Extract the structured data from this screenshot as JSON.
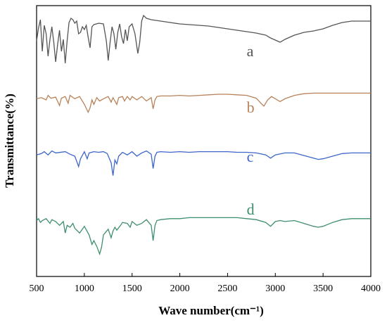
{
  "chart_data": {
    "type": "line",
    "title": "",
    "xlabel": "Wave number(cm⁻¹)",
    "ylabel": "Transmittance(%)",
    "xlim": [
      500,
      4000
    ],
    "x_ticks": [
      "500",
      "1000",
      "1500",
      "2000",
      "2500",
      "3000",
      "3500",
      "4000"
    ],
    "y_ticks_visible": false,
    "grid": false,
    "legend": "inline labels beside each curve",
    "series": [
      {
        "name": "a",
        "color": "#555555",
        "points": [
          [
            500,
            60
          ],
          [
            520,
            78
          ],
          [
            540,
            90
          ],
          [
            560,
            45
          ],
          [
            580,
            82
          ],
          [
            600,
            70
          ],
          [
            620,
            38
          ],
          [
            640,
            62
          ],
          [
            660,
            80
          ],
          [
            680,
            58
          ],
          [
            700,
            30
          ],
          [
            720,
            55
          ],
          [
            740,
            75
          ],
          [
            760,
            45
          ],
          [
            780,
            62
          ],
          [
            800,
            28
          ],
          [
            820,
            60
          ],
          [
            840,
            86
          ],
          [
            860,
            92
          ],
          [
            880,
            90
          ],
          [
            900,
            85
          ],
          [
            920,
            88
          ],
          [
            940,
            70
          ],
          [
            960,
            72
          ],
          [
            980,
            80
          ],
          [
            1000,
            76
          ],
          [
            1020,
            82
          ],
          [
            1040,
            65
          ],
          [
            1060,
            50
          ],
          [
            1080,
            80
          ],
          [
            1100,
            83
          ],
          [
            1150,
            85
          ],
          [
            1200,
            84
          ],
          [
            1230,
            60
          ],
          [
            1250,
            32
          ],
          [
            1270,
            58
          ],
          [
            1290,
            80
          ],
          [
            1310,
            70
          ],
          [
            1330,
            48
          ],
          [
            1350,
            72
          ],
          [
            1370,
            84
          ],
          [
            1390,
            66
          ],
          [
            1410,
            56
          ],
          [
            1430,
            76
          ],
          [
            1450,
            60
          ],
          [
            1470,
            80
          ],
          [
            1500,
            84
          ],
          [
            1530,
            70
          ],
          [
            1560,
            42
          ],
          [
            1580,
            58
          ],
          [
            1600,
            88
          ],
          [
            1620,
            96
          ],
          [
            1650,
            92
          ],
          [
            1700,
            90
          ],
          [
            1800,
            88
          ],
          [
            1900,
            86
          ],
          [
            2000,
            84
          ],
          [
            2100,
            83
          ],
          [
            2200,
            82
          ],
          [
            2300,
            81
          ],
          [
            2400,
            79
          ],
          [
            2500,
            77
          ],
          [
            2600,
            75
          ],
          [
            2700,
            73
          ],
          [
            2800,
            71
          ],
          [
            2900,
            68
          ],
          [
            2950,
            64
          ],
          [
            3000,
            61
          ],
          [
            3050,
            58
          ],
          [
            3100,
            62
          ],
          [
            3200,
            68
          ],
          [
            3300,
            72
          ],
          [
            3400,
            74
          ],
          [
            3500,
            77
          ],
          [
            3600,
            82
          ],
          [
            3700,
            86
          ],
          [
            3800,
            88
          ],
          [
            3900,
            88
          ],
          [
            4000,
            88
          ]
        ]
      },
      {
        "name": "b",
        "color": "#b8825a",
        "points": [
          [
            500,
            62
          ],
          [
            550,
            64
          ],
          [
            600,
            60
          ],
          [
            620,
            68
          ],
          [
            650,
            63
          ],
          [
            700,
            65
          ],
          [
            740,
            50
          ],
          [
            760,
            63
          ],
          [
            800,
            66
          ],
          [
            830,
            54
          ],
          [
            850,
            68
          ],
          [
            900,
            62
          ],
          [
            950,
            66
          ],
          [
            1000,
            52
          ],
          [
            1040,
            38
          ],
          [
            1060,
            46
          ],
          [
            1080,
            60
          ],
          [
            1100,
            52
          ],
          [
            1130,
            64
          ],
          [
            1160,
            58
          ],
          [
            1200,
            62
          ],
          [
            1250,
            66
          ],
          [
            1280,
            56
          ],
          [
            1300,
            64
          ],
          [
            1340,
            52
          ],
          [
            1360,
            64
          ],
          [
            1400,
            66
          ],
          [
            1420,
            58
          ],
          [
            1450,
            66
          ],
          [
            1480,
            60
          ],
          [
            1500,
            66
          ],
          [
            1550,
            60
          ],
          [
            1600,
            66
          ],
          [
            1650,
            58
          ],
          [
            1700,
            64
          ],
          [
            1720,
            44
          ],
          [
            1740,
            60
          ],
          [
            1760,
            66
          ],
          [
            1800,
            67
          ],
          [
            1900,
            67
          ],
          [
            2000,
            68
          ],
          [
            2100,
            67
          ],
          [
            2200,
            68
          ],
          [
            2300,
            69
          ],
          [
            2400,
            70
          ],
          [
            2500,
            70
          ],
          [
            2600,
            69
          ],
          [
            2700,
            68
          ],
          [
            2800,
            63
          ],
          [
            2850,
            54
          ],
          [
            2880,
            49
          ],
          [
            2920,
            60
          ],
          [
            2960,
            66
          ],
          [
            3000,
            62
          ],
          [
            3050,
            57
          ],
          [
            3100,
            62
          ],
          [
            3200,
            68
          ],
          [
            3300,
            71
          ],
          [
            3400,
            72
          ],
          [
            3600,
            72
          ],
          [
            3800,
            72
          ],
          [
            4000,
            72
          ]
        ]
      },
      {
        "name": "c",
        "color": "#3d66c9",
        "points": [
          [
            500,
            52
          ],
          [
            550,
            54
          ],
          [
            580,
            57
          ],
          [
            620,
            52
          ],
          [
            660,
            58
          ],
          [
            700,
            55
          ],
          [
            800,
            57
          ],
          [
            850,
            53
          ],
          [
            900,
            50
          ],
          [
            940,
            34
          ],
          [
            960,
            46
          ],
          [
            1000,
            57
          ],
          [
            1030,
            46
          ],
          [
            1050,
            55
          ],
          [
            1100,
            57
          ],
          [
            1150,
            56
          ],
          [
            1200,
            57
          ],
          [
            1240,
            54
          ],
          [
            1280,
            40
          ],
          [
            1300,
            20
          ],
          [
            1320,
            44
          ],
          [
            1340,
            38
          ],
          [
            1360,
            50
          ],
          [
            1400,
            56
          ],
          [
            1450,
            52
          ],
          [
            1500,
            57
          ],
          [
            1550,
            50
          ],
          [
            1600,
            55
          ],
          [
            1650,
            58
          ],
          [
            1700,
            53
          ],
          [
            1720,
            31
          ],
          [
            1740,
            50
          ],
          [
            1760,
            56
          ],
          [
            1800,
            57
          ],
          [
            1900,
            56
          ],
          [
            2000,
            57
          ],
          [
            2100,
            56
          ],
          [
            2200,
            57
          ],
          [
            2300,
            57
          ],
          [
            2400,
            57
          ],
          [
            2500,
            57
          ],
          [
            2600,
            56
          ],
          [
            2700,
            56
          ],
          [
            2800,
            55
          ],
          [
            2900,
            52
          ],
          [
            2950,
            47
          ],
          [
            3000,
            52
          ],
          [
            3100,
            55
          ],
          [
            3200,
            55
          ],
          [
            3300,
            51
          ],
          [
            3400,
            47
          ],
          [
            3450,
            45
          ],
          [
            3500,
            46
          ],
          [
            3600,
            50
          ],
          [
            3700,
            54
          ],
          [
            3800,
            55
          ],
          [
            3900,
            55
          ],
          [
            4000,
            55
          ]
        ]
      },
      {
        "name": "d",
        "color": "#3f8f6e",
        "points": [
          [
            500,
            43
          ],
          [
            520,
            45
          ],
          [
            540,
            41
          ],
          [
            560,
            43
          ],
          [
            600,
            45
          ],
          [
            640,
            40
          ],
          [
            660,
            44
          ],
          [
            700,
            42
          ],
          [
            740,
            38
          ],
          [
            780,
            42
          ],
          [
            800,
            30
          ],
          [
            820,
            38
          ],
          [
            850,
            36
          ],
          [
            880,
            40
          ],
          [
            900,
            35
          ],
          [
            950,
            30
          ],
          [
            980,
            34
          ],
          [
            1000,
            37
          ],
          [
            1050,
            28
          ],
          [
            1080,
            18
          ],
          [
            1100,
            22
          ],
          [
            1130,
            16
          ],
          [
            1160,
            8
          ],
          [
            1180,
            15
          ],
          [
            1200,
            28
          ],
          [
            1250,
            34
          ],
          [
            1280,
            25
          ],
          [
            1300,
            32
          ],
          [
            1320,
            36
          ],
          [
            1340,
            33
          ],
          [
            1380,
            38
          ],
          [
            1400,
            41
          ],
          [
            1450,
            40
          ],
          [
            1480,
            36
          ],
          [
            1500,
            42
          ],
          [
            1550,
            38
          ],
          [
            1600,
            40
          ],
          [
            1650,
            44
          ],
          [
            1700,
            38
          ],
          [
            1720,
            22
          ],
          [
            1740,
            38
          ],
          [
            1760,
            43
          ],
          [
            1800,
            44
          ],
          [
            1900,
            45
          ],
          [
            2000,
            45
          ],
          [
            2100,
            46
          ],
          [
            2200,
            46
          ],
          [
            2300,
            46
          ],
          [
            2400,
            46
          ],
          [
            2500,
            46
          ],
          [
            2600,
            46
          ],
          [
            2700,
            45
          ],
          [
            2800,
            44
          ],
          [
            2900,
            41
          ],
          [
            2950,
            37
          ],
          [
            3000,
            42
          ],
          [
            3050,
            43
          ],
          [
            3100,
            42
          ],
          [
            3200,
            43
          ],
          [
            3300,
            40
          ],
          [
            3400,
            37
          ],
          [
            3450,
            36
          ],
          [
            3500,
            37
          ],
          [
            3600,
            41
          ],
          [
            3700,
            44
          ],
          [
            3800,
            45
          ],
          [
            3900,
            45
          ],
          [
            4000,
            45
          ]
        ]
      }
    ]
  }
}
